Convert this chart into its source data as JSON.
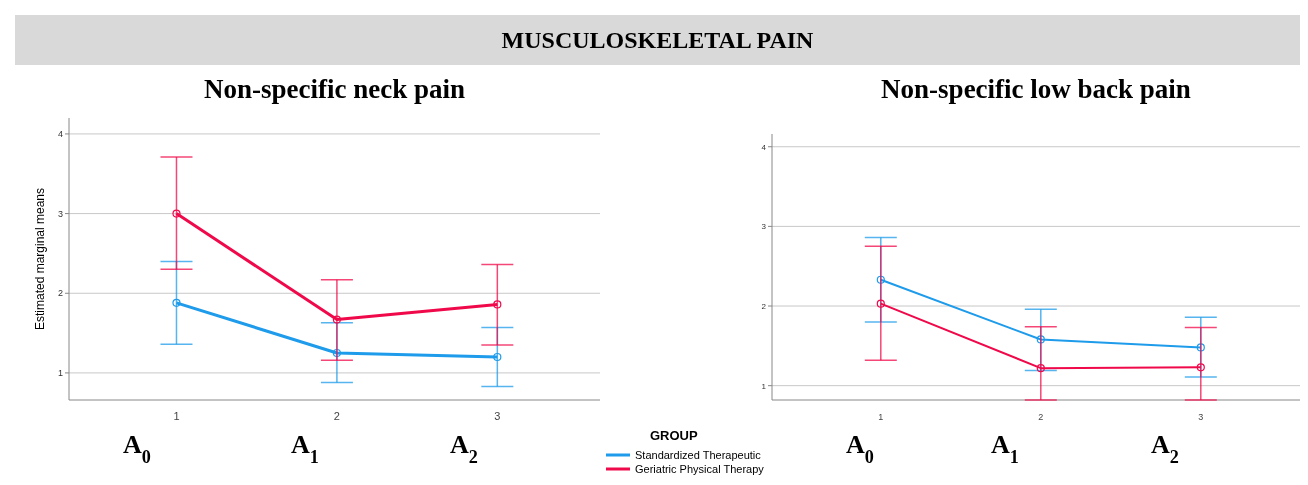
{
  "chart_data": [
    {
      "type": "other",
      "title": "MUSCULOSKELETAL PAIN"
    },
    {
      "type": "line",
      "title": "Non-specific neck pain",
      "ylabel": "Estimated marginal means",
      "x": [
        1,
        2,
        3
      ],
      "xlim": [
        0.33,
        3.64
      ],
      "xticks": [
        1,
        2,
        3
      ],
      "ylim": [
        0.66,
        4.2
      ],
      "yticks": [
        1,
        2,
        3,
        4
      ],
      "grid": "y",
      "marker": "circle",
      "legend": "bottom right",
      "legend_title": "GROUP",
      "annotations": [
        "A$_{0}$",
        "A$_{1}$",
        "A$_{2}$"
      ],
      "series": [
        {
          "name": "Standardized Therapeutic",
          "color": "#1e9bea",
          "values": [
            1.88,
            1.25,
            1.2
          ],
          "errors": [
            [
              1.36,
              2.4
            ],
            [
              0.88,
              1.63
            ],
            [
              0.83,
              1.57
            ]
          ]
        },
        {
          "name": "Geriatric Physical Therapy",
          "color": "#f0094a",
          "values": [
            3.0,
            1.67,
            1.86
          ],
          "errors": [
            [
              2.3,
              3.71
            ],
            [
              1.16,
              2.17
            ],
            [
              1.35,
              2.36
            ]
          ]
        }
      ]
    },
    {
      "type": "line",
      "title": "Non-specific low back pain",
      "x": [
        1,
        2,
        3
      ],
      "xlim": [
        0.32,
        3.62
      ],
      "xticks": [
        1,
        2,
        3
      ],
      "ylim": [
        0.82,
        4.16
      ],
      "yticks": [
        1,
        2,
        3,
        4
      ],
      "grid": "y",
      "marker": "circle",
      "annotations": [
        "A$_{0}$",
        "A$_{1}$",
        "A$_{2}$"
      ],
      "series": [
        {
          "color": "#1e9bea",
          "values": [
            2.33,
            1.58,
            1.48
          ],
          "errors": [
            [
              1.8,
              2.86
            ],
            [
              1.19,
              1.96
            ],
            [
              1.11,
              1.86
            ]
          ]
        },
        {
          "color": "#f0094a",
          "values": [
            2.03,
            1.22,
            1.23
          ],
          "errors": [
            [
              1.32,
              2.75
            ],
            [
              0.82,
              1.74
            ],
            [
              0.82,
              1.73
            ]
          ]
        }
      ]
    }
  ]
}
